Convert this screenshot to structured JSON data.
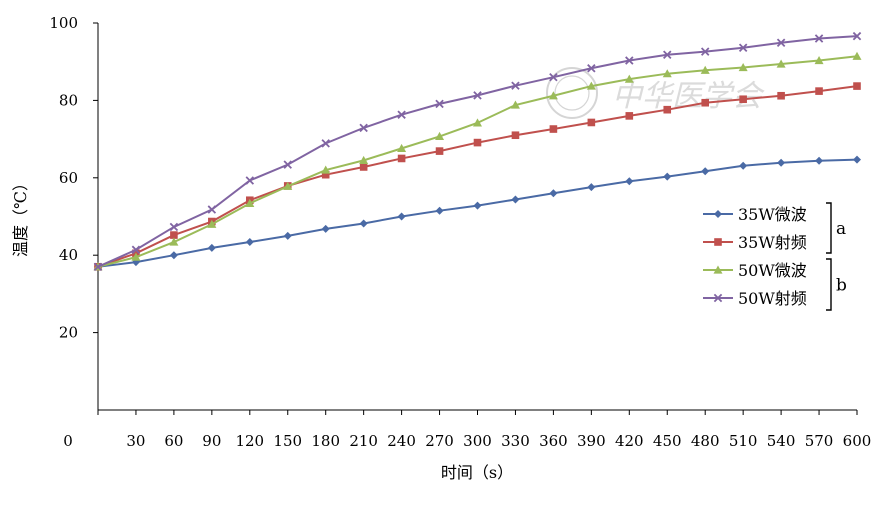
{
  "chart_data": {
    "type": "line",
    "title": "",
    "xlabel": "时间（s）",
    "ylabel": "温度（℃）",
    "x": [
      0,
      30,
      60,
      90,
      120,
      150,
      180,
      210,
      240,
      270,
      300,
      330,
      360,
      390,
      420,
      450,
      480,
      510,
      540,
      570,
      600
    ],
    "xlim": [
      0,
      600
    ],
    "ylim": [
      0,
      100
    ],
    "xticks": [
      "0",
      "30",
      "60",
      "90",
      "120",
      "150",
      "180",
      "210",
      "240",
      "270",
      "300",
      "330",
      "360",
      "390",
      "420",
      "450",
      "480",
      "510",
      "540",
      "570",
      "600"
    ],
    "yticks": [
      "20",
      "40",
      "60",
      "80",
      "100"
    ],
    "grid": false,
    "legend_position": "right",
    "series": [
      {
        "name": "35W微波",
        "color": "#4a6aa5",
        "marker": "diamond",
        "values": [
          37.0,
          38.2,
          40.0,
          41.9,
          43.4,
          45.0,
          46.8,
          48.2,
          50.0,
          51.5,
          52.8,
          54.4,
          56.0,
          57.6,
          59.1,
          60.3,
          61.7,
          63.1,
          63.9,
          64.4,
          64.7
        ]
      },
      {
        "name": "35W射频",
        "color": "#c0504d",
        "marker": "square",
        "values": [
          37.0,
          40.5,
          45.2,
          48.7,
          54.2,
          57.9,
          60.8,
          62.8,
          65.0,
          66.9,
          69.1,
          71.0,
          72.6,
          74.3,
          76.0,
          77.6,
          79.4,
          80.3,
          81.2,
          82.4,
          83.7
        ]
      },
      {
        "name": "50W微波",
        "color": "#9bbb59",
        "marker": "triangle",
        "values": [
          37.0,
          39.5,
          43.4,
          48.0,
          53.4,
          57.8,
          62.0,
          64.5,
          67.6,
          70.7,
          74.2,
          78.8,
          81.2,
          83.7,
          85.5,
          86.9,
          87.8,
          88.5,
          89.4,
          90.3,
          91.4
        ]
      },
      {
        "name": "50W射频",
        "color": "#8064a2",
        "marker": "x",
        "values": [
          37.0,
          41.4,
          47.3,
          51.8,
          59.3,
          63.4,
          68.9,
          72.9,
          76.3,
          79.1,
          81.3,
          83.8,
          86.0,
          88.3,
          90.3,
          91.8,
          92.6,
          93.6,
          94.9,
          96.0,
          96.6
        ]
      }
    ],
    "legend_groups": [
      {
        "label": "a",
        "series": [
          "35W微波",
          "35W射频"
        ]
      },
      {
        "label": "b",
        "series": [
          "50W微波",
          "50W射频"
        ]
      }
    ]
  },
  "watermark": {
    "text": "中华医学会"
  }
}
